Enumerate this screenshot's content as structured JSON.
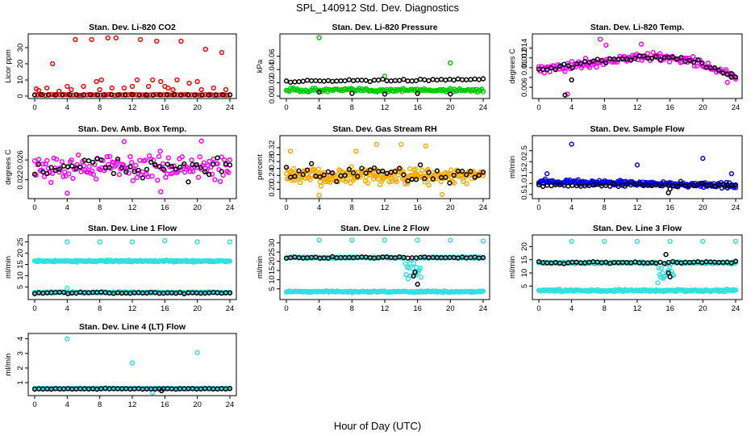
{
  "figure": {
    "title": "SPL_140912  Std. Dev. Diagnostics",
    "xlabel": "Hour of Day (UTC)"
  },
  "colors": {
    "red": "#ff0000",
    "green": "#00cc00",
    "magenta": "#ff00ff",
    "orange": "#ffaa00",
    "blue": "#0000ff",
    "cyan": "#33e0e0",
    "black": "#000000"
  },
  "chart_data": [
    {
      "id": "co2",
      "type": "scatter",
      "title": "Stan. Dev. Li-820 CO2",
      "ylabel": "Licor ppm",
      "xlim": [
        0,
        24
      ],
      "ylim": [
        0,
        37
      ],
      "xticks": [
        0,
        4,
        8,
        12,
        16,
        20,
        24
      ],
      "yticks": [
        0,
        10,
        20,
        30
      ],
      "ytick_labels": [
        "0",
        "10",
        "20",
        "30"
      ],
      "series": [
        {
          "color": "red",
          "base": 0.8,
          "noise": 0.3,
          "density": 3,
          "outliers": [
            [
              0.2,
              4.5
            ],
            [
              0.5,
              3.5
            ],
            [
              1.5,
              5
            ],
            [
              2.2,
              20
            ],
            [
              3,
              3
            ],
            [
              4,
              6
            ],
            [
              4.5,
              4
            ],
            [
              5,
              35
            ],
            [
              6,
              6
            ],
            [
              7,
              35
            ],
            [
              7.6,
              9
            ],
            [
              8,
              4
            ],
            [
              8.2,
              10
            ],
            [
              9,
              36
            ],
            [
              9.5,
              5
            ],
            [
              10,
              36
            ],
            [
              11,
              5
            ],
            [
              12,
              6
            ],
            [
              12.6,
              10
            ],
            [
              13,
              35
            ],
            [
              14,
              6
            ],
            [
              14.5,
              10
            ],
            [
              15,
              34
            ],
            [
              15.5,
              9
            ],
            [
              16,
              6
            ],
            [
              16.4,
              5
            ],
            [
              17,
              4
            ],
            [
              17.5,
              10
            ],
            [
              18,
              34
            ],
            [
              19,
              8
            ],
            [
              20,
              9
            ],
            [
              20.5,
              4
            ],
            [
              21,
              29
            ],
            [
              22,
              5
            ],
            [
              23,
              27
            ],
            [
              23.5,
              4
            ]
          ]
        },
        {
          "color": "black",
          "base": 0.8,
          "noise": 0.15,
          "density": 1.2
        }
      ]
    },
    {
      "id": "pressure",
      "type": "scatter",
      "title": "Stan. Dev. Li-820 Pressure",
      "ylabel": "kPa",
      "xlim": [
        0,
        24
      ],
      "ylim": [
        0,
        0.09
      ],
      "xticks": [
        0,
        4,
        8,
        12,
        16,
        20,
        24
      ],
      "yticks": [
        0,
        0.02,
        0.04,
        0.06
      ],
      "ytick_labels": [
        "0.00",
        "0.02",
        "0.04",
        "0.06"
      ],
      "series": [
        {
          "color": "green",
          "base": 0.009,
          "noise": 0.003,
          "density": 6,
          "outliers": [
            [
              4,
              0.088
            ],
            [
              12,
              0.03
            ],
            [
              20,
              0.05
            ]
          ]
        },
        {
          "color": "black",
          "base": 0.022,
          "noise": 0.0015,
          "density": 2,
          "trend": 0.000125,
          "outliers": [
            [
              4,
              0.006
            ],
            [
              8,
              0.004
            ],
            [
              12,
              0.003
            ],
            [
              16,
              0.004
            ],
            [
              20,
              0.003
            ]
          ]
        }
      ]
    },
    {
      "id": "temp",
      "type": "scatter",
      "title": "Stan. Dev. Li-820 Temp.",
      "ylabel": "degrees C",
      "xlim": [
        0,
        24
      ],
      "ylim": [
        0.0042,
        0.0164
      ],
      "xticks": [
        0,
        4,
        8,
        12,
        16,
        20,
        24
      ],
      "yticks": [
        0.006,
        0.008,
        0.01,
        0.012,
        0.014
      ],
      "ytick_labels": [
        "0.006",
        "",
        "0.01",
        "0.012",
        "0.014"
      ],
      "series": [
        {
          "color": "magenta",
          "curve": "temp",
          "noise": 0.0009,
          "density": 6,
          "outliers": [
            [
              7.5,
              0.0158
            ],
            [
              3.5,
              0.0046
            ],
            [
              8.2,
              0.0146
            ],
            [
              12.5,
              0.0148
            ],
            [
              23,
              0.007
            ]
          ]
        },
        {
          "color": "black",
          "curve": "temp",
          "noise": 0.0006,
          "density": 2,
          "outliers": [
            [
              3.2,
              0.0044
            ],
            [
              4,
              0.0075
            ],
            [
              23.5,
              0.0088
            ]
          ]
        }
      ]
    },
    {
      "id": "ambbox",
      "type": "scatter",
      "title": "Stan. Dev. Amb. Box Temp.",
      "ylabel": "degrees C",
      "xlim": [
        0,
        24
      ],
      "ylim": [
        0.0187,
        0.0304
      ],
      "xticks": [
        0,
        4,
        8,
        12,
        16,
        20,
        24
      ],
      "yticks": [
        0.022,
        0.026
      ],
      "ytick_labels": [
        "0.022",
        "0.026"
      ],
      "series": [
        {
          "color": "magenta",
          "base": 0.0245,
          "noise": 0.0027,
          "density": 6,
          "outliers": [
            [
              4,
              0.0193
            ],
            [
              15.5,
              0.0196
            ],
            [
              20.5,
              0.0298
            ],
            [
              11,
              0.0297
            ]
          ]
        },
        {
          "color": "black",
          "base": 0.0245,
          "noise": 0.0022,
          "density": 2
        }
      ]
    },
    {
      "id": "rh",
      "type": "scatter",
      "title": "Stan. Dev. Gas Stream RH",
      "ylabel": "percent",
      "xlim": [
        0,
        24
      ],
      "ylim": [
        0.18,
        0.348
      ],
      "xticks": [
        0,
        4,
        8,
        12,
        16,
        20,
        24
      ],
      "yticks": [
        0.2,
        0.22,
        0.24,
        0.26,
        0.28,
        0.3,
        0.32
      ],
      "ytick_labels": [
        "0.20",
        "",
        "0.24",
        "",
        "0.28",
        "",
        "0.32"
      ],
      "series": [
        {
          "color": "orange",
          "base": 0.238,
          "noise": 0.024,
          "density": 10,
          "outliers": [
            [
              0.5,
              0.31
            ],
            [
              4,
              0.183
            ],
            [
              8.5,
              0.31
            ],
            [
              11,
              0.33
            ],
            [
              14,
              0.33
            ],
            [
              17,
              0.325
            ],
            [
              19,
              0.185
            ]
          ]
        },
        {
          "color": "black",
          "base": 0.245,
          "noise": 0.024,
          "density": 2
        }
      ]
    },
    {
      "id": "sampleflow",
      "type": "scatter",
      "title": "Stan. Dev. Sample Flow",
      "ylabel": "ml/min",
      "xlim": [
        0,
        24
      ],
      "ylim": [
        0.42,
        3.08
      ],
      "xticks": [
        0,
        4,
        8,
        12,
        16,
        20,
        24
      ],
      "yticks": [
        0.5,
        1,
        1.5,
        2,
        2.5
      ],
      "ytick_labels": [
        "0.5",
        "1.0",
        "1.5",
        "2.0",
        "2.5"
      ],
      "series": [
        {
          "color": "blue",
          "base": 1.1,
          "noise": 0.12,
          "density": 9,
          "trend": -0.008,
          "outliers": [
            [
              4,
              2.8
            ],
            [
              12,
              1.85
            ],
            [
              20,
              2.15
            ],
            [
              1,
              1.45
            ],
            [
              23.5,
              1.45
            ]
          ]
        },
        {
          "color": "black",
          "base": 0.92,
          "noise": 0.08,
          "density": 2,
          "outliers": [
            [
              15.8,
              0.58
            ],
            [
              16,
              0.75
            ],
            [
              23,
              0.8
            ]
          ]
        }
      ]
    },
    {
      "id": "line1",
      "type": "scatter",
      "title": "Stan. Dev. Line 1 Flow",
      "ylabel": "ml/min",
      "xlim": [
        0,
        24
      ],
      "ylim": [
        0.5,
        27
      ],
      "xticks": [
        0,
        4,
        8,
        12,
        16,
        20,
        24
      ],
      "yticks": [
        5,
        10,
        15,
        20,
        25
      ],
      "ytick_labels": [
        "5",
        "10",
        "15",
        "20",
        "25"
      ],
      "series": [
        {
          "color": "cyan",
          "base": 16.5,
          "noise": 0.35,
          "density": 10,
          "outliers": [
            [
              4,
              25
            ],
            [
              8,
              25
            ],
            [
              12,
              25
            ],
            [
              16,
              25.5
            ],
            [
              20,
              25
            ],
            [
              24,
              25
            ]
          ]
        },
        {
          "color": "cyan",
          "base": 2.6,
          "noise": 0.3,
          "density": 8,
          "outliers": [
            [
              4,
              4.5
            ]
          ]
        },
        {
          "color": "black",
          "base": 2.4,
          "noise": 0.35,
          "density": 2
        }
      ]
    },
    {
      "id": "line2",
      "type": "scatter",
      "title": "Stan. Dev. Line 2 Flow",
      "ylabel": "ml/min",
      "xlim": [
        0,
        24
      ],
      "ylim": [
        0.5,
        33
      ],
      "xticks": [
        0,
        4,
        8,
        12,
        16,
        20,
        24
      ],
      "yticks": [
        5,
        10,
        15,
        20,
        25,
        30
      ],
      "ytick_labels": [
        "5",
        "10",
        "15",
        "20",
        "25",
        "30"
      ],
      "series": [
        {
          "color": "cyan",
          "base": 22,
          "noise": 0.4,
          "density": 9,
          "dip": [
            14.5,
            16.5,
            12
          ],
          "outliers": [
            [
              4,
              31.5
            ],
            [
              8,
              31.5
            ],
            [
              12,
              31.5
            ],
            [
              16,
              31.5
            ],
            [
              20,
              31.5
            ],
            [
              24,
              31
            ]
          ]
        },
        {
          "color": "cyan",
          "base": 3.5,
          "noise": 0.4,
          "density": 8
        },
        {
          "color": "black",
          "base": 22,
          "noise": 0.4,
          "density": 2,
          "outliers": [
            [
              15.5,
              12
            ],
            [
              16,
              7.5
            ],
            [
              15.7,
              14
            ]
          ]
        }
      ]
    },
    {
      "id": "line3",
      "type": "scatter",
      "title": "Stan. Dev. Line 3 Flow",
      "ylabel": "ml/min",
      "xlim": [
        0,
        24
      ],
      "ylim": [
        0.8,
        23.5
      ],
      "xticks": [
        0,
        4,
        8,
        12,
        16,
        20,
        24
      ],
      "yticks": [
        5,
        10,
        15,
        20
      ],
      "ytick_labels": [
        "5",
        "10",
        "15",
        "20"
      ],
      "series": [
        {
          "color": "cyan",
          "base": 13.8,
          "noise": 0.35,
          "density": 9,
          "dip": [
            14.5,
            16.5,
            8
          ],
          "outliers": [
            [
              4,
              22
            ],
            [
              8,
              22
            ],
            [
              12,
              22
            ],
            [
              16,
              22
            ],
            [
              20,
              22
            ],
            [
              24,
              22
            ]
          ]
        },
        {
          "color": "cyan",
          "base": 3.3,
          "noise": 0.4,
          "density": 8
        },
        {
          "color": "black",
          "base": 14,
          "noise": 0.4,
          "density": 2,
          "outliers": [
            [
              15.5,
              17
            ],
            [
              16,
              8.5
            ],
            [
              15.8,
              10
            ]
          ]
        }
      ]
    },
    {
      "id": "line4",
      "type": "scatter",
      "title": "Stan. Dev. Line 4 (LT) Flow",
      "ylabel": "ml/min",
      "xlim": [
        0,
        24
      ],
      "ylim": [
        0.28,
        4.2
      ],
      "xticks": [
        0,
        4,
        8,
        12,
        16,
        20,
        24
      ],
      "yticks": [
        1,
        2,
        3,
        4
      ],
      "ytick_labels": [
        "1",
        "2",
        "3",
        "4"
      ],
      "series": [
        {
          "color": "cyan",
          "base": 0.6,
          "noise": 0.03,
          "density": 8,
          "outliers": [
            [
              4,
              4
            ],
            [
              12,
              2.35
            ],
            [
              20,
              3.05
            ],
            [
              14.5,
              0.32
            ]
          ]
        },
        {
          "color": "black",
          "base": 0.58,
          "noise": 0.03,
          "density": 2,
          "outliers": [
            [
              15.6,
              0.45
            ]
          ]
        }
      ]
    }
  ]
}
